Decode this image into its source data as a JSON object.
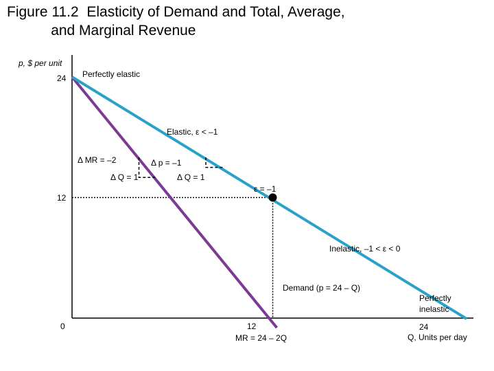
{
  "title_line1": "Figure 11.2  Elasticity of Demand and Total, Average,",
  "title_line2": "and Marginal Revenue",
  "chart_data": {
    "type": "line",
    "ylabel": "p, $ per unit",
    "xlabel": "Q, Units per day",
    "xlim": [
      0,
      24
    ],
    "ylim": [
      0,
      24
    ],
    "x_ticks": [
      {
        "value": 0,
        "label": "0"
      },
      {
        "value": 12,
        "label": "12"
      },
      {
        "value": 24,
        "label": "24"
      }
    ],
    "y_ticks": [
      {
        "value": 12,
        "label": "12"
      },
      {
        "value": 24,
        "label": "24"
      }
    ],
    "series": [
      {
        "name": "Demand (p = 24 – Q)",
        "color": "#2aa1c8",
        "x": [
          0,
          24
        ],
        "y": [
          24,
          0
        ]
      },
      {
        "name": "MR = 24 – 2Q",
        "color": "#7b3b94",
        "x": [
          0,
          12
        ],
        "y": [
          24,
          0
        ]
      }
    ],
    "marked_point": {
      "x": 12,
      "y": 12,
      "label": "ε = –1"
    },
    "annotations": {
      "perfectly_elastic": "Perfectly elastic",
      "elastic": "Elastic, ε < –1",
      "inelastic": "Inelastic, –1 < ε < 0",
      "perfectly_inelastic_line1": "Perfectly",
      "perfectly_inelastic_line2": "inelastic",
      "delta_mr": "Δ MR = –2",
      "delta_p": "Δ p = –1",
      "delta_q_mr": "Δ Q = 1",
      "delta_q_demand": "Δ Q = 1"
    },
    "steps": [
      {
        "curve": "MR",
        "q_from": 4,
        "q_to": 5,
        "p_from": 16,
        "p_to": 14
      },
      {
        "curve": "Demand",
        "q_from": 8,
        "q_to": 9,
        "p_from": 16,
        "p_to": 15
      }
    ],
    "grid": false
  }
}
